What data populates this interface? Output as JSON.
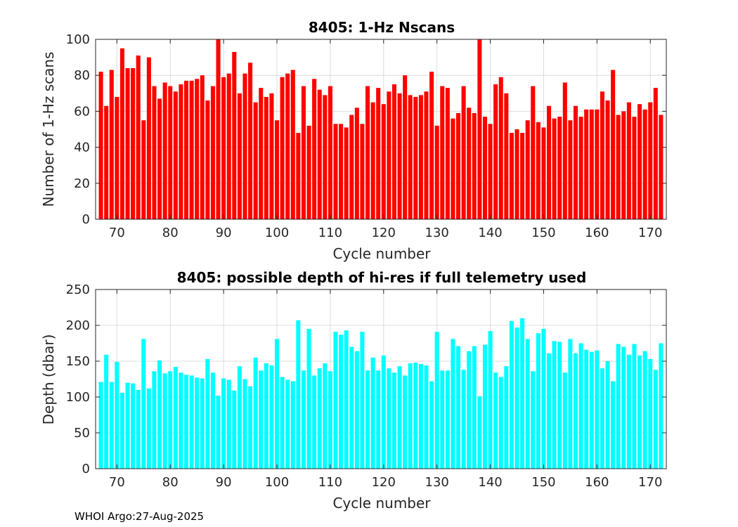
{
  "footer": "WHOI Argo:27-Aug-2025",
  "chart_data": [
    {
      "type": "bar",
      "title": "8405: 1-Hz Nscans",
      "xlabel": "Cycle number",
      "ylabel": "Number of 1-Hz scans",
      "color": "#ff0000",
      "xlim": [
        66,
        173
      ],
      "ylim": [
        0,
        100
      ],
      "xticks": [
        70,
        80,
        90,
        100,
        110,
        120,
        130,
        140,
        150,
        160,
        170
      ],
      "yticks": [
        0,
        20,
        40,
        60,
        80,
        100
      ],
      "grid": true,
      "x_start": 67,
      "values": [
        82,
        63,
        83,
        68,
        95,
        84,
        84,
        91,
        55,
        90,
        74,
        67,
        76,
        74,
        71,
        75,
        77,
        77,
        78,
        80,
        66,
        74,
        100,
        79,
        81,
        93,
        70,
        81,
        87,
        65,
        73,
        68,
        70,
        55,
        79,
        81,
        83,
        48,
        74,
        52,
        78,
        72,
        69,
        74,
        53,
        53,
        51,
        58,
        62,
        53,
        74,
        65,
        73,
        64,
        71,
        75,
        70,
        80,
        69,
        68,
        69,
        71,
        82,
        52,
        74,
        73,
        56,
        59,
        74,
        62,
        59,
        100,
        57,
        53,
        75,
        79,
        70,
        48,
        50,
        48,
        55,
        74,
        54,
        51,
        63,
        56,
        57,
        76,
        55,
        63,
        57,
        61,
        61,
        61,
        71,
        66,
        83,
        58,
        60,
        65,
        57,
        64,
        61,
        65,
        73,
        58
      ]
    },
    {
      "type": "bar",
      "title": "8405: possible depth of hi-res if full telemetry used",
      "xlabel": "Cycle number",
      "ylabel": "Depth (dbar)",
      "color": "#00ffff",
      "xlim": [
        66,
        173
      ],
      "ylim": [
        0,
        250
      ],
      "xticks": [
        70,
        80,
        90,
        100,
        110,
        120,
        130,
        140,
        150,
        160,
        170
      ],
      "yticks": [
        0,
        50,
        100,
        150,
        200,
        250
      ],
      "grid": true,
      "x_start": 67,
      "values": [
        121,
        159,
        121,
        149,
        106,
        120,
        119,
        110,
        181,
        112,
        136,
        151,
        133,
        136,
        142,
        134,
        131,
        130,
        127,
        126,
        153,
        134,
        102,
        126,
        124,
        109,
        143,
        125,
        115,
        155,
        137,
        147,
        144,
        181,
        128,
        124,
        122,
        207,
        137,
        195,
        130,
        140,
        147,
        136,
        191,
        187,
        193,
        170,
        164,
        191,
        137,
        155,
        137,
        158,
        140,
        134,
        143,
        130,
        147,
        148,
        146,
        144,
        122,
        191,
        137,
        137,
        181,
        171,
        138,
        164,
        171,
        101,
        173,
        192,
        134,
        128,
        143,
        206,
        197,
        210,
        181,
        136,
        189,
        195,
        161,
        178,
        177,
        134,
        181,
        161,
        175,
        166,
        163,
        165,
        140,
        150,
        122,
        174,
        170,
        159,
        174,
        158,
        164,
        153,
        138,
        175
      ]
    }
  ]
}
